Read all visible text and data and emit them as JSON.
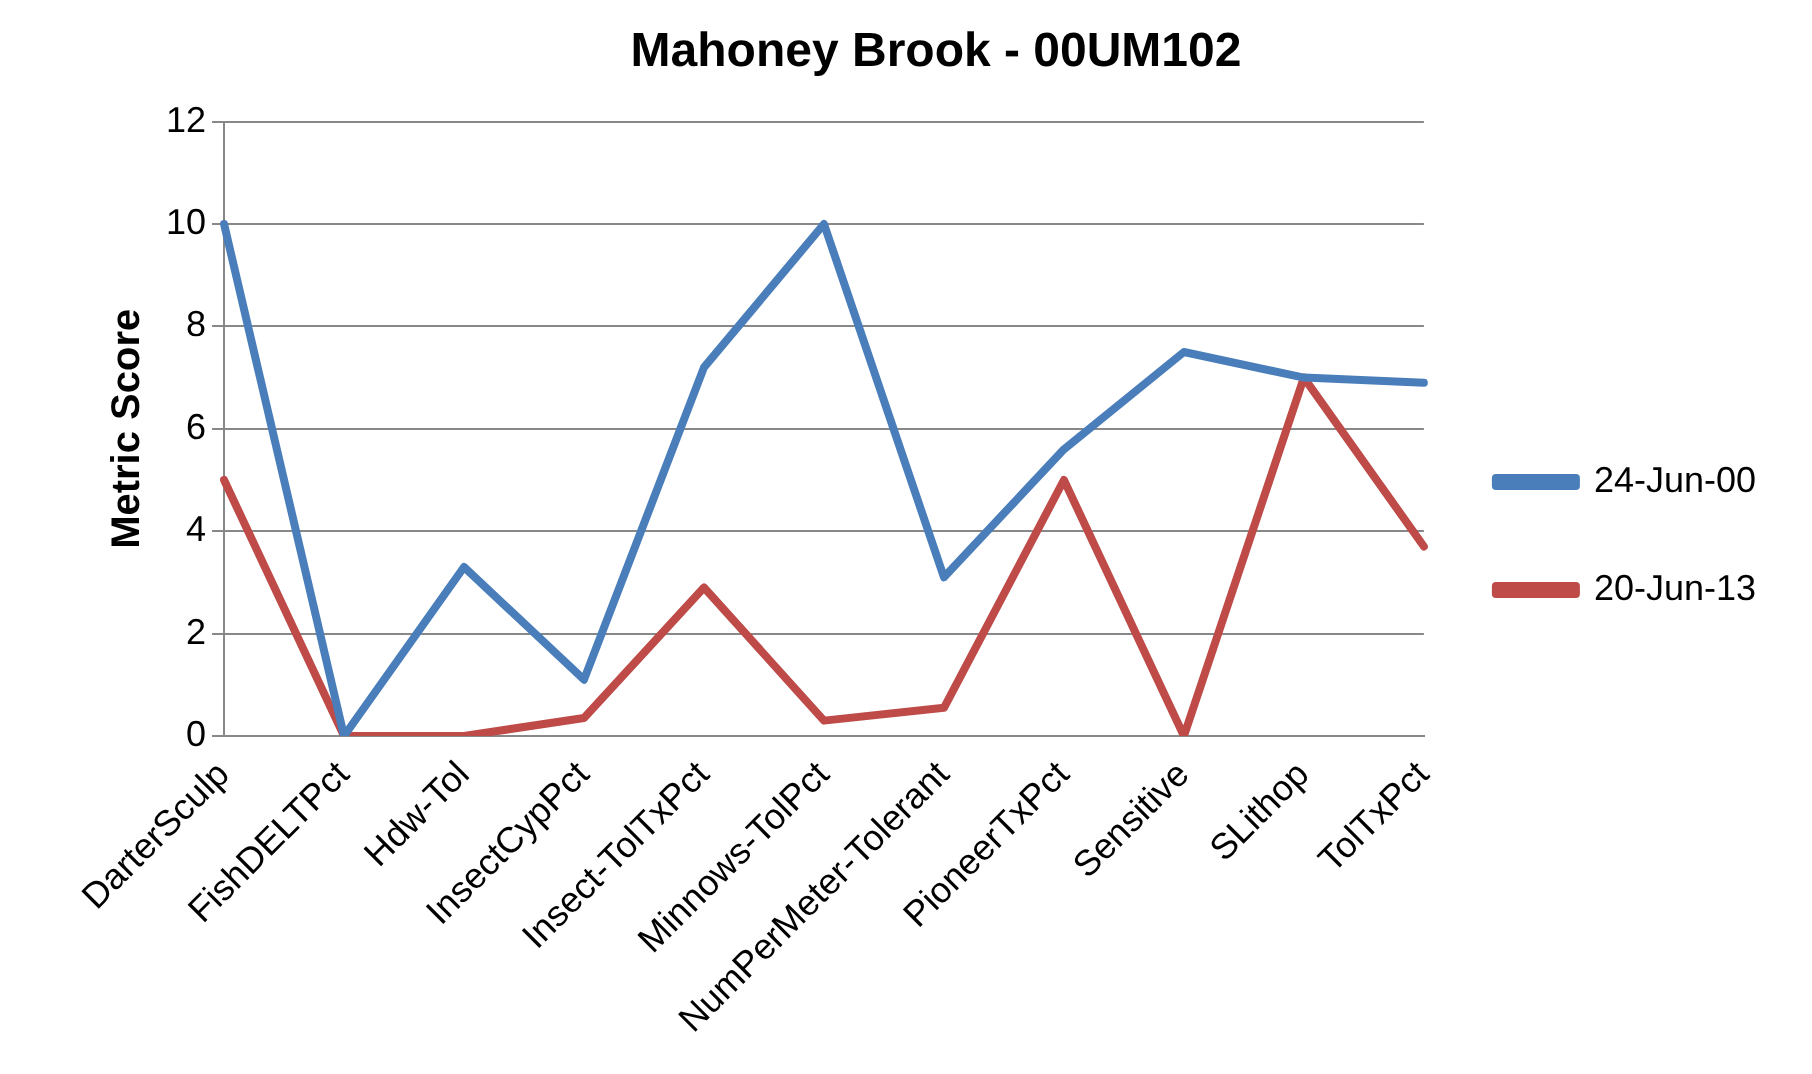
{
  "chart_data": {
    "type": "line",
    "title": "Mahoney Brook - 00UM102",
    "ylabel": "Metric Score",
    "categories": [
      "DarterSculp",
      "FishDELTPct",
      "Hdw-Tol",
      "InsectCypPct",
      "Insect-TolTxPct",
      "Minnows-TolPct",
      "NumPerMeter-Tolerant",
      "PioneerTxPct",
      "Sensitive",
      "SLithop",
      "TolTxPct"
    ],
    "series": [
      {
        "name": "24-Jun-00",
        "color": "#4a7ebb",
        "values": [
          10,
          0,
          3.3,
          1.1,
          7.2,
          10,
          3.1,
          5.6,
          7.5,
          7.0,
          6.9
        ]
      },
      {
        "name": "20-Jun-13",
        "color": "#be4b48",
        "values": [
          5,
          0,
          0,
          0.35,
          2.9,
          0.3,
          0.55,
          5.0,
          0,
          7.0,
          3.7
        ]
      }
    ],
    "ylim": [
      0,
      12
    ],
    "yticks": [
      0,
      2,
      4,
      6,
      8,
      10,
      12
    ],
    "grid": "y",
    "legend": "right",
    "marker": "none",
    "line_style": "solid"
  }
}
